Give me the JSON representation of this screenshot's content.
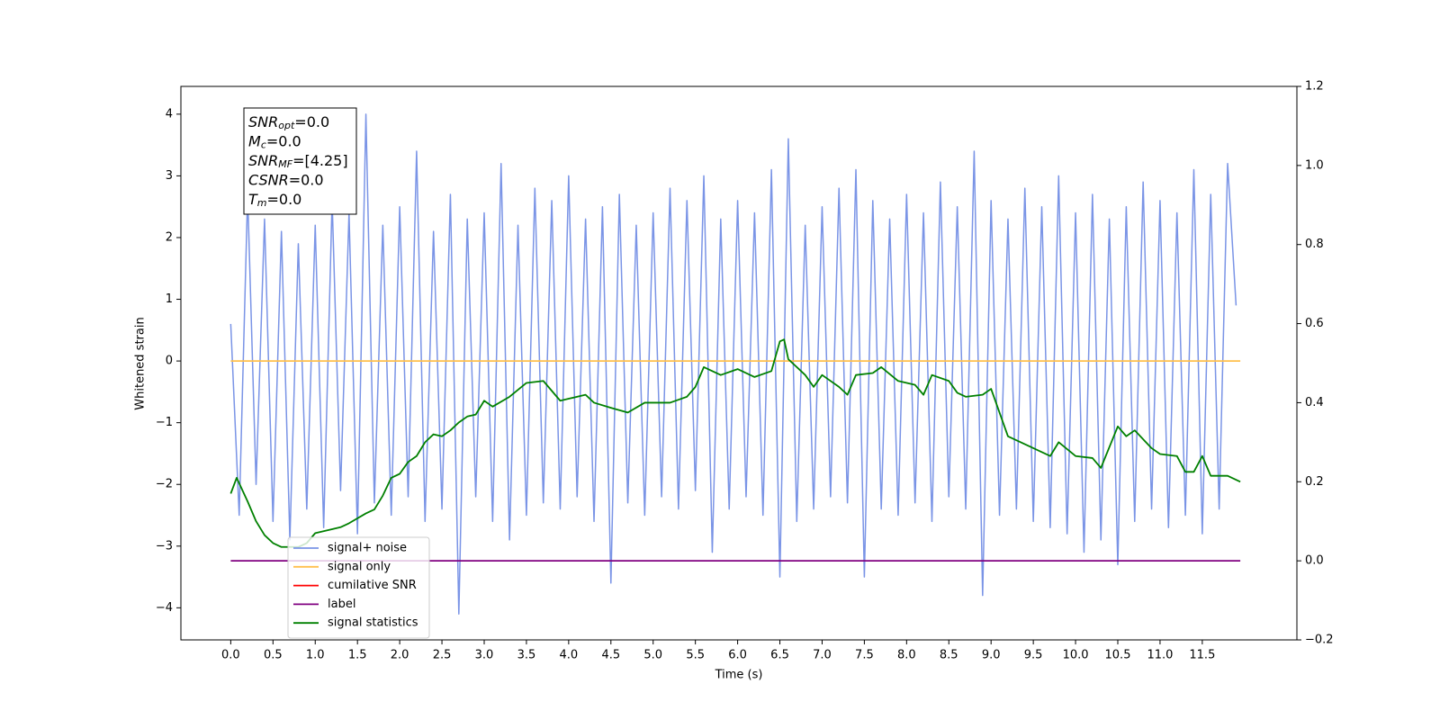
{
  "chart_data": {
    "type": "line",
    "xlabel": "Time (s)",
    "ylabel": "Whitened strain",
    "xlim": [
      -0.59,
      12.62
    ],
    "ylim": [
      -4.52,
      4.45
    ],
    "y2lim": [
      -0.2,
      1.2
    ],
    "xticks": [
      {
        "value": 0,
        "label": "0.0"
      },
      0.5,
      {
        "value": 1,
        "label": "1.0"
      },
      1.5,
      {
        "value": 2,
        "label": "2.0"
      },
      2.5,
      {
        "value": 3,
        "label": "3.0"
      },
      3.5,
      {
        "value": 4,
        "label": "4.0"
      },
      4.5,
      {
        "value": 5,
        "label": "5.0"
      },
      5.5,
      {
        "value": 6,
        "label": "6.0"
      },
      6.5,
      {
        "value": 7,
        "label": "7.0"
      },
      7.5,
      {
        "value": 8,
        "label": "8.0"
      },
      8.5,
      {
        "value": 9,
        "label": "9.0"
      },
      9.5,
      {
        "value": 10,
        "label": "10.0"
      },
      10.5,
      {
        "value": 11,
        "label": "11.0"
      },
      11.5
    ],
    "yticks": [
      {
        "value": -4,
        "label": "−4"
      },
      {
        "value": -3,
        "label": "−3"
      },
      {
        "value": -2,
        "label": "−2"
      },
      {
        "value": -1,
        "label": "−1"
      },
      0,
      1,
      2,
      3,
      4
    ],
    "y2ticks": [
      {
        "value": -0.2,
        "label": "−0.2"
      },
      {
        "value": 0,
        "label": "0.0"
      },
      0.2,
      0.4,
      0.6,
      0.8,
      {
        "value": 1,
        "label": "1.0"
      },
      1.2
    ],
    "legend": "lower left",
    "annotation": [
      {
        "symbol": "SNR",
        "sub": "opt",
        "text": "=0.0"
      },
      {
        "symbol": "M",
        "sub": "c",
        "text": "=0.0"
      },
      {
        "symbol": "SNR",
        "sub": "MF",
        "text": "=[4.25]"
      },
      {
        "symbol": "CSNR",
        "text": "=0.0"
      },
      {
        "symbol": "T",
        "sub": "m",
        "text": "=0.0"
      }
    ],
    "series": [
      {
        "name": "signal+ noise",
        "color": "#7a94e6",
        "x": [
          0,
          0.1,
          0.2,
          0.3,
          0.4,
          0.5,
          0.6,
          0.7,
          0.8,
          0.9,
          1,
          1.1,
          1.2,
          1.3,
          1.4,
          1.5,
          1.6,
          1.7,
          1.8,
          1.9,
          2,
          2.1,
          2.2,
          2.3,
          2.4,
          2.5,
          2.6,
          2.7,
          2.8,
          2.9,
          3,
          3.1,
          3.2,
          3.3,
          3.4,
          3.5,
          3.6,
          3.7,
          3.8,
          3.9,
          4,
          4.1,
          4.2,
          4.3,
          4.4,
          4.5,
          4.6,
          4.7,
          4.8,
          4.9,
          5,
          5.1,
          5.2,
          5.3,
          5.4,
          5.5,
          5.6,
          5.7,
          5.8,
          5.9,
          6,
          6.1,
          6.2,
          6.3,
          6.4,
          6.5,
          6.6,
          6.7,
          6.8,
          6.9,
          7,
          7.1,
          7.2,
          7.3,
          7.4,
          7.5,
          7.6,
          7.7,
          7.8,
          7.9,
          8,
          8.1,
          8.2,
          8.3,
          8.4,
          8.5,
          8.6,
          8.7,
          8.8,
          8.9,
          9,
          9.1,
          9.2,
          9.3,
          9.4,
          9.5,
          9.6,
          9.7,
          9.8,
          9.9,
          10,
          10.1,
          10.2,
          10.3,
          10.4,
          10.5,
          10.6,
          10.7,
          10.8,
          10.9,
          11,
          11.1,
          11.2,
          11.3,
          11.4,
          11.5,
          11.6,
          11.7,
          11.8,
          11.9
        ],
        "values": [
          0.6,
          -2.5,
          2.7,
          -2.0,
          2.3,
          -2.6,
          2.1,
          -2.9,
          1.9,
          -2.4,
          2.2,
          -2.7,
          2.6,
          -2.1,
          2.4,
          -2.8,
          4.0,
          -2.3,
          2.2,
          -2.5,
          2.5,
          -2.2,
          3.4,
          -2.6,
          2.1,
          -2.4,
          2.7,
          -4.1,
          2.3,
          -2.2,
          2.4,
          -2.6,
          3.2,
          -2.9,
          2.2,
          -2.5,
          2.8,
          -2.3,
          2.6,
          -2.4,
          3.0,
          -2.2,
          2.3,
          -2.6,
          2.5,
          -3.6,
          2.7,
          -2.3,
          2.2,
          -2.5,
          2.4,
          -2.2,
          2.8,
          -2.4,
          2.6,
          -2.1,
          3.0,
          -3.1,
          2.3,
          -2.4,
          2.6,
          -2.2,
          2.4,
          -2.5,
          3.1,
          -3.5,
          3.6,
          -2.6,
          2.2,
          -2.4,
          2.5,
          -2.2,
          2.8,
          -2.3,
          3.1,
          -3.5,
          2.6,
          -2.4,
          2.3,
          -2.5,
          2.7,
          -2.3,
          2.4,
          -2.6,
          2.9,
          -2.2,
          2.5,
          -2.4,
          3.4,
          -3.8,
          2.6,
          -2.5,
          2.3,
          -2.4,
          2.8,
          -2.6,
          2.5,
          -2.7,
          3.0,
          -2.8,
          2.4,
          -3.1,
          2.7,
          -2.9,
          2.3,
          -3.3,
          2.5,
          -2.6,
          2.9,
          -2.4,
          2.6,
          -2.7,
          2.4,
          -2.5,
          3.1,
          -2.8,
          2.7,
          -2.4,
          3.2,
          0.9
        ]
      },
      {
        "name": "signal only",
        "color": "#ffc04d",
        "x": [
          0,
          11.95
        ],
        "values": [
          0,
          0
        ]
      },
      {
        "name": "cumilative SNR",
        "color": "#ff0000",
        "x": [],
        "values": []
      },
      {
        "name": "label",
        "color": "#800080",
        "axis": "y2",
        "x": [
          0,
          11.95
        ],
        "values": [
          0,
          0
        ]
      },
      {
        "name": "signal statistics",
        "color": "#008000",
        "axis": "y2",
        "x": [
          0,
          0.07,
          0.2,
          0.3,
          0.4,
          0.5,
          0.6,
          0.8,
          0.9,
          1,
          1.2,
          1.3,
          1.4,
          1.6,
          1.7,
          1.8,
          1.9,
          2,
          2.1,
          2.2,
          2.3,
          2.4,
          2.5,
          2.6,
          2.7,
          2.8,
          2.9,
          3,
          3.1,
          3.3,
          3.5,
          3.7,
          3.9,
          4,
          4.2,
          4.3,
          4.5,
          4.7,
          4.9,
          5,
          5.2,
          5.4,
          5.5,
          5.6,
          5.8,
          6,
          6.2,
          6.4,
          6.5,
          6.55,
          6.6,
          6.8,
          6.9,
          7,
          7.2,
          7.3,
          7.4,
          7.6,
          7.7,
          7.9,
          8.1,
          8.2,
          8.3,
          8.5,
          8.6,
          8.7,
          8.9,
          9,
          9.2,
          9.3,
          9.5,
          9.7,
          9.8,
          10,
          10.2,
          10.3,
          10.5,
          10.6,
          10.7,
          10.9,
          11,
          11.2,
          11.3,
          11.4,
          11.5,
          11.6,
          11.8,
          11.95
        ],
        "values": [
          0.17,
          0.21,
          0.15,
          0.1,
          0.065,
          0.045,
          0.035,
          0.035,
          0.045,
          0.07,
          0.08,
          0.085,
          0.095,
          0.12,
          0.13,
          0.165,
          0.21,
          0.22,
          0.25,
          0.265,
          0.3,
          0.32,
          0.315,
          0.33,
          0.35,
          0.365,
          0.37,
          0.405,
          0.39,
          0.415,
          0.45,
          0.455,
          0.405,
          0.41,
          0.42,
          0.4,
          0.387,
          0.375,
          0.4,
          0.4,
          0.4,
          0.415,
          0.44,
          0.49,
          0.47,
          0.485,
          0.465,
          0.48,
          0.555,
          0.56,
          0.51,
          0.47,
          0.44,
          0.47,
          0.44,
          0.42,
          0.47,
          0.475,
          0.49,
          0.455,
          0.445,
          0.42,
          0.47,
          0.455,
          0.425,
          0.415,
          0.42,
          0.435,
          0.315,
          0.305,
          0.285,
          0.265,
          0.3,
          0.265,
          0.26,
          0.235,
          0.34,
          0.315,
          0.33,
          0.285,
          0.27,
          0.265,
          0.225,
          0.225,
          0.265,
          0.215,
          0.215,
          0.2
        ]
      }
    ]
  }
}
